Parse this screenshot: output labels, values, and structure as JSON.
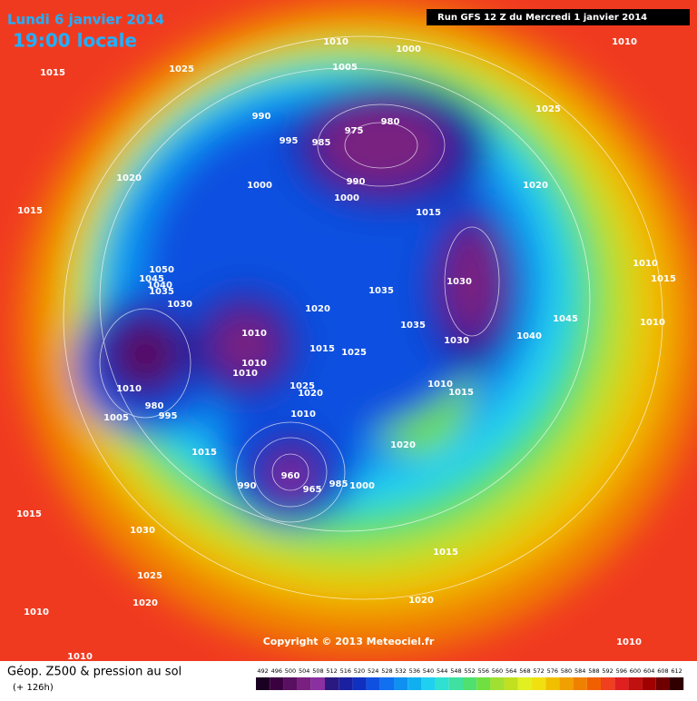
{
  "header": {
    "title": "Lundi 6 janvier 2014",
    "subtitle": "19:00 locale",
    "run": "Run GFS 12 Z du Mercredi 1 janvier 2014"
  },
  "map": {
    "isobar_labels": [
      "1010",
      "1000",
      "1010",
      "1015",
      "1025",
      "1005",
      "1025",
      "990",
      "980",
      "975",
      "995",
      "985",
      "1020",
      "990",
      "1020",
      "1000",
      "1000",
      "1015",
      "1015",
      "1050",
      "1045",
      "1040",
      "1035",
      "1030",
      "1030",
      "1010",
      "1015",
      "1035",
      "1020",
      "1045",
      "1010",
      "1035",
      "1010",
      "1015",
      "1025",
      "1030",
      "1040",
      "1010",
      "1010",
      "1010",
      "1025",
      "1020",
      "1010",
      "1015",
      "1010",
      "980",
      "1005",
      "995",
      "1015",
      "1020",
      "960",
      "965",
      "985",
      "990",
      "1000",
      "1015",
      "1030",
      "1015",
      "1025",
      "1020",
      "1020",
      "1010",
      "1010",
      "1010"
    ]
  },
  "footer": {
    "copyright": "Copyright © 2013 Meteociel.fr",
    "legend_title": "Géop. Z500 & pression au sol",
    "lead_time": "(+ 126h)"
  },
  "color_scale": {
    "labels": [
      492,
      496,
      500,
      504,
      508,
      512,
      516,
      520,
      524,
      528,
      532,
      536,
      540,
      544,
      548,
      552,
      556,
      560,
      564,
      568,
      572,
      576,
      580,
      584,
      588,
      592,
      596,
      600,
      604,
      608,
      612
    ],
    "colors": [
      "#1a0020",
      "#3a0040",
      "#5a1060",
      "#7a2080",
      "#8a30a0",
      "#2a1a80",
      "#1a20a0",
      "#1030c0",
      "#1050e0",
      "#1070f0",
      "#1090f0",
      "#10b0f0",
      "#20d0f0",
      "#30e0d0",
      "#40e0a0",
      "#50e070",
      "#70e040",
      "#a0e030",
      "#c0e020",
      "#e0f020",
      "#f0e010",
      "#f0c000",
      "#f0a000",
      "#f08000",
      "#f06000",
      "#f04020",
      "#e02020",
      "#c01010",
      "#a00000",
      "#700000",
      "#300000"
    ]
  }
}
